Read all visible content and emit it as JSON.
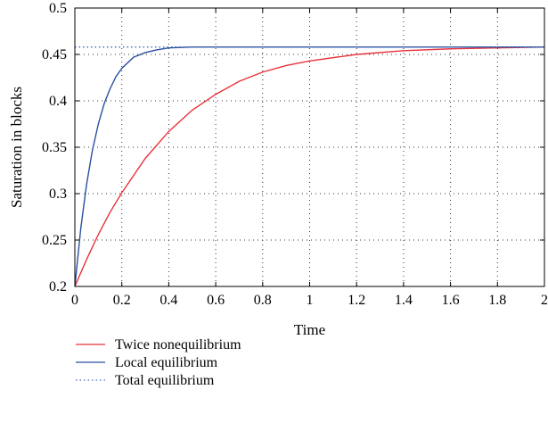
{
  "chart_data": {
    "type": "line",
    "xlabel": "Time",
    "ylabel": "Saturation in blocks",
    "xlim": [
      0,
      2
    ],
    "ylim": [
      0.2,
      0.5
    ],
    "x_ticks": [
      "0",
      "0.2",
      "0.4",
      "0.6",
      "0.8",
      "1",
      "1.2",
      "1.4",
      "1.6",
      "1.8",
      "2"
    ],
    "y_ticks": [
      "0.2",
      "0.25",
      "0.3",
      "0.35",
      "0.4",
      "0.45",
      "0.5"
    ],
    "grid": true,
    "legend_position": "below",
    "series": [
      {
        "name": "Twice nonequilibrium",
        "color": "#e8333a",
        "style": "solid",
        "x": [
          0,
          0.05,
          0.1,
          0.15,
          0.2,
          0.3,
          0.4,
          0.5,
          0.6,
          0.7,
          0.8,
          0.9,
          1.0,
          1.2,
          1.4,
          1.6,
          1.8,
          2.0
        ],
        "y": [
          0.2,
          0.229,
          0.256,
          0.28,
          0.301,
          0.338,
          0.367,
          0.39,
          0.407,
          0.421,
          0.431,
          0.438,
          0.443,
          0.45,
          0.454,
          0.456,
          0.457,
          0.458
        ]
      },
      {
        "name": "Local equilibrium",
        "color": "#2a4fa0",
        "style": "solid",
        "x": [
          0,
          0.025,
          0.05,
          0.075,
          0.1,
          0.125,
          0.15,
          0.175,
          0.2,
          0.25,
          0.3,
          0.35,
          0.4,
          0.5,
          0.6,
          0.8,
          1.0,
          1.5,
          2.0
        ],
        "y": [
          0.2,
          0.262,
          0.31,
          0.347,
          0.375,
          0.397,
          0.413,
          0.426,
          0.435,
          0.447,
          0.452,
          0.455,
          0.457,
          0.458,
          0.458,
          0.458,
          0.458,
          0.458,
          0.458
        ]
      },
      {
        "name": "Total equilibrium",
        "color": "#3a6ab8",
        "style": "dotted",
        "x": [
          0,
          2
        ],
        "y": [
          0.458,
          0.458
        ]
      }
    ]
  }
}
